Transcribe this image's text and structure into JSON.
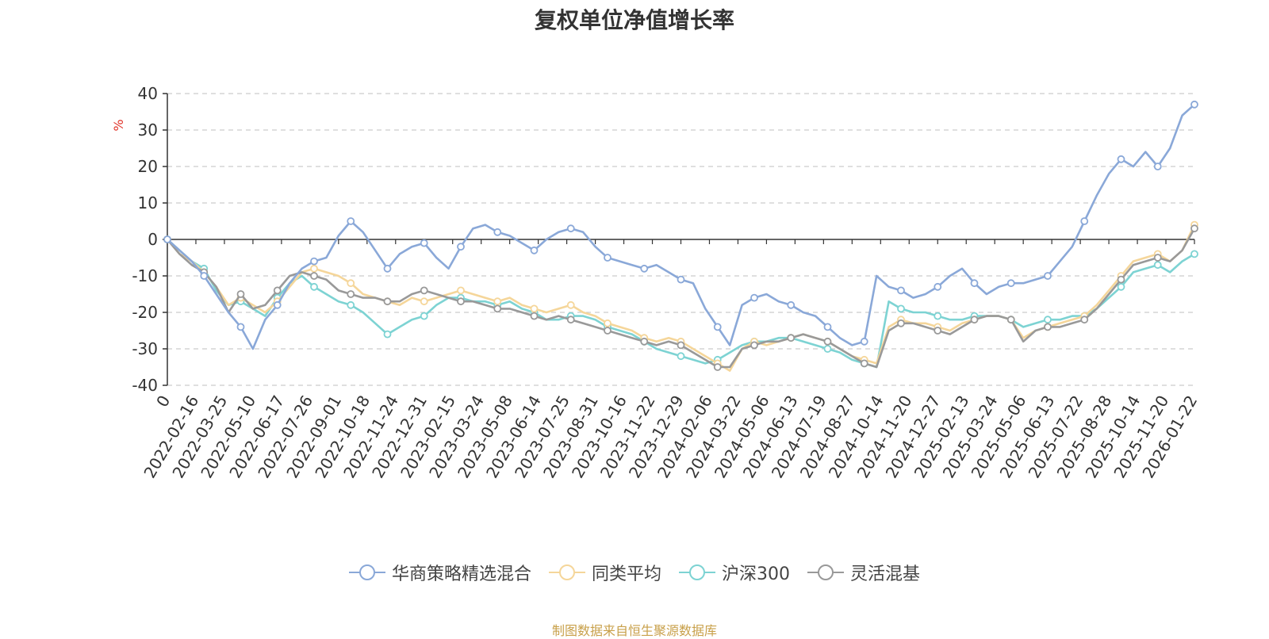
{
  "chart_data": {
    "type": "line",
    "title": "复权单位净值增长率",
    "ylabel": "%",
    "ylim": [
      -40,
      40
    ],
    "yticks": [
      40,
      30,
      20,
      10,
      0,
      -10,
      -20,
      -30,
      -40
    ],
    "x_tick_labels": [
      "0",
      "2022-02-16",
      "2022-03-25",
      "2022-05-10",
      "2022-06-17",
      "2022-07-26",
      "2022-09-01",
      "2022-10-18",
      "2022-11-24",
      "2022-12-31",
      "2023-02-15",
      "2023-03-24",
      "2023-05-08",
      "2023-06-14",
      "2023-07-25",
      "2023-08-31",
      "2023-10-16",
      "2023-11-22",
      "2023-12-29",
      "2024-02-06",
      "2024-03-22",
      "2024-05-06",
      "2024-06-13",
      "2024-07-19",
      "2024-08-27",
      "2024-10-14",
      "2024-11-20",
      "2024-12-27",
      "2025-02-13",
      "2025-03-24",
      "2025-05-06",
      "2025-06-13",
      "2025-07-22",
      "2025-08-28",
      "2025-10-14",
      "2025-11-20",
      "2026-01-22"
    ],
    "series": [
      {
        "name": "华商策略精选混合",
        "color": "#8aa8d8",
        "values": [
          0,
          -3,
          -6,
          -10,
          -15,
          -20,
          -24,
          -30,
          -22,
          -18,
          -12,
          -8,
          -6,
          -5,
          1,
          5,
          2,
          -3,
          -8,
          -4,
          -2,
          -1,
          -5,
          -8,
          -2,
          3,
          4,
          2,
          1,
          -1,
          -3,
          0,
          2,
          3,
          2,
          -2,
          -5,
          -6,
          -7,
          -8,
          -7,
          -9,
          -11,
          -12,
          -19,
          -24,
          -29,
          -18,
          -16,
          -15,
          -17,
          -18,
          -20,
          -21,
          -24,
          -27,
          -29,
          -28,
          -10,
          -13,
          -14,
          -16,
          -15,
          -13,
          -10,
          -8,
          -12,
          -15,
          -13,
          -12,
          -12,
          -11,
          -10,
          -6,
          -2,
          5,
          12,
          18,
          22,
          20,
          24,
          20,
          25,
          34,
          37
        ]
      },
      {
        "name": "同类平均",
        "color": "#f5d69a",
        "values": [
          0,
          -4,
          -6,
          -9,
          -13,
          -18,
          -16,
          -18,
          -20,
          -17,
          -13,
          -9,
          -8,
          -9,
          -10,
          -12,
          -15,
          -16,
          -17,
          -18,
          -16,
          -17,
          -16,
          -15,
          -14,
          -15,
          -16,
          -17,
          -16,
          -18,
          -19,
          -20,
          -19,
          -18,
          -20,
          -21,
          -23,
          -24,
          -25,
          -27,
          -28,
          -27,
          -28,
          -30,
          -32,
          -34,
          -36,
          -30,
          -28,
          -29,
          -28,
          -27,
          -26,
          -27,
          -28,
          -30,
          -32,
          -33,
          -34,
          -24,
          -22,
          -23,
          -23,
          -24,
          -25,
          -23,
          -22,
          -21,
          -21,
          -22,
          -27,
          -25,
          -24,
          -23,
          -22,
          -21,
          -18,
          -14,
          -10,
          -6,
          -5,
          -4,
          -6,
          -3,
          4
        ]
      },
      {
        "name": "沪深300",
        "color": "#7dd3d3",
        "values": [
          0,
          -3,
          -6,
          -8,
          -14,
          -18,
          -17,
          -19,
          -21,
          -16,
          -12,
          -10,
          -13,
          -15,
          -17,
          -18,
          -20,
          -23,
          -26,
          -24,
          -22,
          -21,
          -18,
          -16,
          -16,
          -17,
          -17,
          -18,
          -17,
          -19,
          -20,
          -22,
          -22,
          -21,
          -21,
          -22,
          -24,
          -25,
          -26,
          -28,
          -30,
          -31,
          -32,
          -33,
          -34,
          -33,
          -31,
          -29,
          -28,
          -28,
          -27,
          -27,
          -28,
          -29,
          -30,
          -31,
          -33,
          -34,
          -35,
          -17,
          -19,
          -20,
          -20,
          -21,
          -22,
          -22,
          -21,
          -21,
          -21,
          -22,
          -24,
          -23,
          -22,
          -22,
          -21,
          -21,
          -19,
          -16,
          -13,
          -9,
          -8,
          -7,
          -9,
          -6,
          -4
        ]
      },
      {
        "name": "灵活混基",
        "color": "#999999",
        "values": [
          0,
          -4,
          -7,
          -9,
          -13,
          -20,
          -15,
          -19,
          -18,
          -14,
          -10,
          -9,
          -10,
          -11,
          -14,
          -15,
          -16,
          -16,
          -17,
          -17,
          -15,
          -14,
          -15,
          -16,
          -17,
          -17,
          -18,
          -19,
          -19,
          -20,
          -21,
          -22,
          -21,
          -22,
          -23,
          -24,
          -25,
          -26,
          -27,
          -28,
          -29,
          -28,
          -29,
          -31,
          -33,
          -35,
          -35,
          -30,
          -29,
          -28,
          -28,
          -27,
          -26,
          -27,
          -28,
          -30,
          -32,
          -34,
          -35,
          -25,
          -23,
          -23,
          -24,
          -25,
          -26,
          -24,
          -22,
          -21,
          -21,
          -22,
          -28,
          -25,
          -24,
          -24,
          -23,
          -22,
          -19,
          -15,
          -11,
          -7,
          -6,
          -5,
          -6,
          -3,
          3
        ]
      }
    ]
  },
  "footer": "制图数据来自恒生聚源数据库"
}
